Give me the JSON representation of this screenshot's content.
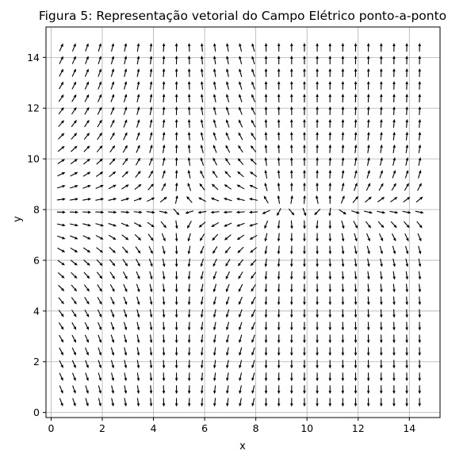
{
  "chart_data": {
    "type": "quiver",
    "title": "Figura 5: Representação vetorial do Campo Elétrico ponto-a-ponto",
    "xlabel": "x",
    "ylabel": "y",
    "xlim": [
      -0.2,
      15.2
    ],
    "ylim": [
      -0.2,
      15.2
    ],
    "xticks": [
      0,
      2,
      4,
      6,
      8,
      10,
      12,
      14
    ],
    "yticks": [
      0,
      2,
      4,
      6,
      8,
      10,
      12,
      14
    ],
    "grid": true,
    "arrow_color": "#000000",
    "grid_color": "#b0b0b0",
    "x_samples": {
      "start": 0.4,
      "step": 0.5,
      "count": 29
    },
    "y_samples": {
      "start": 0.4,
      "step": 0.5,
      "count": 29
    },
    "regions": [
      {
        "name": "left",
        "x_range": [
          0,
          8
        ],
        "center": [
          5,
          8
        ],
        "field": "saddle-outward-y"
      },
      {
        "name": "right",
        "x_range": [
          8,
          15
        ],
        "centers": [
          [
            9,
            8
          ],
          [
            11,
            8
          ]
        ],
        "field": "outward-y"
      }
    ]
  }
}
